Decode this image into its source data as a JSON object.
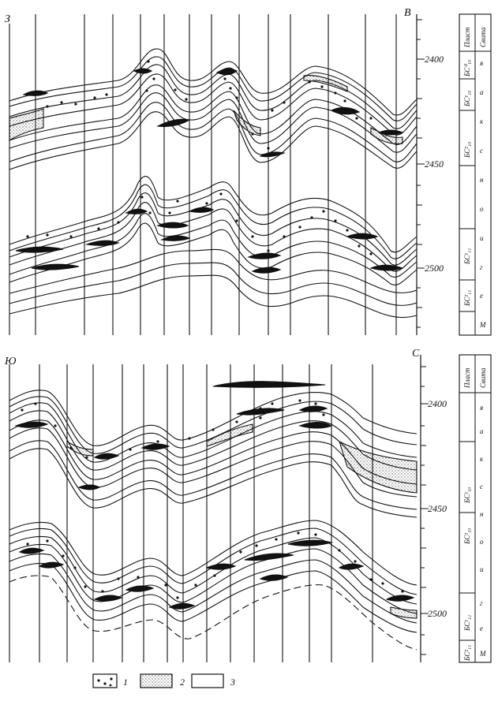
{
  "panels": [
    {
      "id": "upper",
      "left_label": "З",
      "right_label": "В",
      "ticks": [
        {
          "value": "2400",
          "depth": 2400
        },
        {
          "value": "2450",
          "depth": 2450
        },
        {
          "value": "2500",
          "depth": 2500
        }
      ],
      "column": {
        "header1": "Пласт",
        "header2": "Свита",
        "layers": [
          "БС⁰₁₀",
          "БС¹₁₀",
          "БС²₁₀",
          "БС¹₁₁",
          "БС²₁₁"
        ],
        "formation_letters": [
          "М",
          "е",
          "г",
          "и",
          "о",
          "н",
          "с",
          "к",
          "а",
          "я"
        ]
      }
    },
    {
      "id": "lower",
      "left_label": "Ю",
      "right_label": "С",
      "ticks": [
        {
          "value": "2400",
          "depth": 2400
        },
        {
          "value": "2450",
          "depth": 2450
        },
        {
          "value": "2500",
          "depth": 2500
        }
      ],
      "column": {
        "header1": "Пласт",
        "header2": "Свита",
        "layers": [
          "БС¹₁₀",
          "БС²₁₀",
          "БС¹₁₁",
          "БС²₁₁"
        ],
        "formation_letters": [
          "М",
          "е",
          "г",
          "и",
          "о",
          "н",
          "с",
          "к",
          "а",
          "я"
        ]
      }
    }
  ],
  "legend": [
    {
      "id": "1",
      "label": "1",
      "pattern": "dots"
    },
    {
      "id": "2",
      "label": "2",
      "pattern": "stipple"
    },
    {
      "id": "3",
      "label": "3",
      "pattern": "blank"
    }
  ]
}
